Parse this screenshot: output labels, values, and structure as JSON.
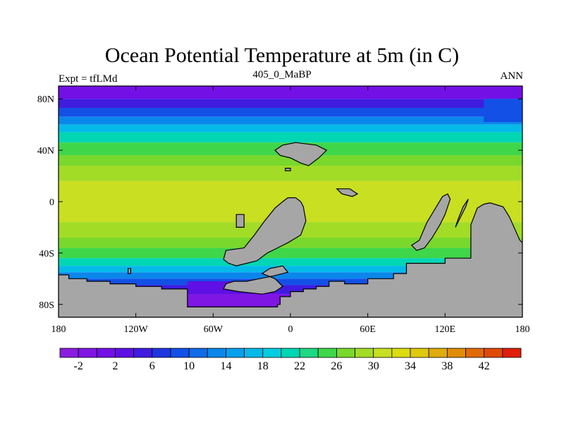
{
  "title": "Ocean Potential Temperature at 5m (in C)",
  "subtitle": "405_0_MaBP",
  "left_label": "Expt = tfLMd",
  "right_label": "ANN",
  "map": {
    "projection": "cylindrical-equidistant",
    "lon_range": [
      -180,
      180
    ],
    "lat_range": [
      -90,
      90
    ],
    "lon_ticks": [
      {
        "value": -180,
        "label": "180"
      },
      {
        "value": -120,
        "label": "120W"
      },
      {
        "value": -60,
        "label": "60W"
      },
      {
        "value": 0,
        "label": "0"
      },
      {
        "value": 60,
        "label": "60E"
      },
      {
        "value": 120,
        "label": "120E"
      },
      {
        "value": 180,
        "label": "180"
      }
    ],
    "lat_ticks": [
      {
        "value": 80,
        "label": "80N"
      },
      {
        "value": 40,
        "label": "40N"
      },
      {
        "value": 0,
        "label": "0"
      },
      {
        "value": -40,
        "label": "40S"
      },
      {
        "value": -80,
        "label": "80S"
      }
    ],
    "ocean_bands": [
      {
        "lat_from": 90,
        "lat_to": 80,
        "temp": 1
      },
      {
        "lat_from": 80,
        "lat_to": 73,
        "temp": 5
      },
      {
        "lat_from": 73,
        "lat_to": 66,
        "temp": 9
      },
      {
        "lat_from": 66,
        "lat_to": 60,
        "temp": 13
      },
      {
        "lat_from": 60,
        "lat_to": 54,
        "temp": 17
      },
      {
        "lat_from": 54,
        "lat_to": 46,
        "temp": 21
      },
      {
        "lat_from": 46,
        "lat_to": 36,
        "temp": 25
      },
      {
        "lat_from": 36,
        "lat_to": 28,
        "temp": 27
      },
      {
        "lat_from": 28,
        "lat_to": 16,
        "temp": 29
      },
      {
        "lat_from": 16,
        "lat_to": -16,
        "temp": 31
      },
      {
        "lat_from": -16,
        "lat_to": -28,
        "temp": 29
      },
      {
        "lat_from": -28,
        "lat_to": -36,
        "temp": 27
      },
      {
        "lat_from": -36,
        "lat_to": -44,
        "temp": 25
      },
      {
        "lat_from": -44,
        "lat_to": -50,
        "temp": 21
      },
      {
        "lat_from": -50,
        "lat_to": -55,
        "temp": 17
      },
      {
        "lat_from": -55,
        "lat_to": -60,
        "temp": 13
      },
      {
        "lat_from": -60,
        "lat_to": -65,
        "temp": 9
      },
      {
        "lat_from": -65,
        "lat_to": -72,
        "temp": 5
      },
      {
        "lat_from": -72,
        "lat_to": -90,
        "temp": 1
      }
    ],
    "regional_patches": [
      {
        "lon_from": -80,
        "lon_to": -10,
        "lat_from": -62,
        "lat_to": -72,
        "temp": 3
      },
      {
        "lon_from": -80,
        "lon_to": -8,
        "lat_from": -72,
        "lat_to": -82,
        "temp": -1
      },
      {
        "lon_from": 150,
        "lon_to": 180,
        "lat_from": 80,
        "lat_to": 62,
        "temp": 9
      }
    ],
    "land": [
      {
        "name": "southern-land-mass",
        "points": [
          [
            -180,
            -57
          ],
          [
            -172,
            -57
          ],
          [
            -172,
            -60
          ],
          [
            -158,
            -60
          ],
          [
            -158,
            -62
          ],
          [
            -140,
            -62
          ],
          [
            -140,
            -64
          ],
          [
            -120,
            -64
          ],
          [
            -120,
            -66
          ],
          [
            -100,
            -66
          ],
          [
            -100,
            -68
          ],
          [
            -80,
            -68
          ],
          [
            -80,
            -82
          ],
          [
            -10,
            -82
          ],
          [
            -10,
            -80
          ],
          [
            -8,
            -80
          ],
          [
            -8,
            -74
          ],
          [
            0,
            -74
          ],
          [
            0,
            -70
          ],
          [
            10,
            -70
          ],
          [
            10,
            -68
          ],
          [
            20,
            -68
          ],
          [
            20,
            -66
          ],
          [
            30,
            -66
          ],
          [
            30,
            -62
          ],
          [
            42,
            -62
          ],
          [
            42,
            -64
          ],
          [
            60,
            -64
          ],
          [
            60,
            -60
          ],
          [
            80,
            -60
          ],
          [
            80,
            -56
          ],
          [
            90,
            -56
          ],
          [
            90,
            -48
          ],
          [
            120,
            -48
          ],
          [
            120,
            -44
          ],
          [
            140,
            -44
          ],
          [
            140,
            -18
          ],
          [
            145,
            -5
          ],
          [
            150,
            -2
          ],
          [
            155,
            -1
          ],
          [
            165,
            -4
          ],
          [
            170,
            -12
          ],
          [
            178,
            -30
          ],
          [
            180,
            -32
          ],
          [
            180,
            -90
          ],
          [
            -180,
            -90
          ]
        ]
      },
      {
        "name": "central-land-mass",
        "points": [
          [
            -50,
            -38
          ],
          [
            -36,
            -36
          ],
          [
            -28,
            -26
          ],
          [
            -20,
            -15
          ],
          [
            -12,
            -5
          ],
          [
            -6,
            0
          ],
          [
            -2,
            3
          ],
          [
            4,
            3
          ],
          [
            8,
            0
          ],
          [
            10,
            -4
          ],
          [
            12,
            -15
          ],
          [
            8,
            -26
          ],
          [
            -2,
            -32
          ],
          [
            -10,
            -36
          ],
          [
            -18,
            -40
          ],
          [
            -26,
            -46
          ],
          [
            -34,
            -48
          ],
          [
            -42,
            -50
          ],
          [
            -48,
            -48
          ],
          [
            -52,
            -45
          ]
        ]
      },
      {
        "name": "south-land-fragment",
        "points": [
          [
            -22,
            -56
          ],
          [
            -16,
            -52
          ],
          [
            -6,
            -50
          ],
          [
            -2,
            -55
          ],
          [
            -14,
            -58
          ],
          [
            -24,
            -60
          ],
          [
            -34,
            -62
          ],
          [
            -44,
            -62
          ],
          [
            -50,
            -64
          ],
          [
            -52,
            -68
          ],
          [
            -40,
            -70
          ],
          [
            -22,
            -72
          ],
          [
            -12,
            -70
          ],
          [
            -6,
            -66
          ],
          [
            -12,
            -60
          ]
        ]
      },
      {
        "name": "southwest-islands",
        "points": [
          [
            -126,
            -52
          ],
          [
            -124,
            -52
          ],
          [
            -124,
            -56
          ],
          [
            -126,
            -56
          ]
        ]
      },
      {
        "name": "east-peninsula",
        "points": [
          [
            100,
            -30
          ],
          [
            106,
            -16
          ],
          [
            112,
            -6
          ],
          [
            118,
            4
          ],
          [
            122,
            6
          ],
          [
            124,
            2
          ],
          [
            120,
            -10
          ],
          [
            116,
            -18
          ],
          [
            110,
            -28
          ],
          [
            104,
            -36
          ],
          [
            98,
            -38
          ],
          [
            94,
            -34
          ]
        ]
      },
      {
        "name": "east-island",
        "points": [
          [
            128,
            -20
          ],
          [
            132,
            -12
          ],
          [
            136,
            -4
          ],
          [
            138,
            2
          ],
          [
            134,
            -4
          ],
          [
            130,
            -14
          ]
        ]
      },
      {
        "name": "northern-land-mass",
        "points": [
          [
            -12,
            40
          ],
          [
            -6,
            44
          ],
          [
            4,
            46
          ],
          [
            20,
            44
          ],
          [
            28,
            40
          ],
          [
            22,
            34
          ],
          [
            14,
            28
          ],
          [
            8,
            30
          ],
          [
            0,
            34
          ],
          [
            -8,
            36
          ]
        ]
      },
      {
        "name": "north-islet",
        "points": [
          [
            -4,
            26
          ],
          [
            0,
            26
          ],
          [
            0,
            24
          ],
          [
            -4,
            24
          ]
        ]
      },
      {
        "name": "east-islets",
        "points": [
          [
            36,
            10
          ],
          [
            46,
            10
          ],
          [
            52,
            6
          ],
          [
            48,
            4
          ],
          [
            40,
            6
          ]
        ]
      },
      {
        "name": "west-islet",
        "points": [
          [
            -42,
            -10
          ],
          [
            -36,
            -10
          ],
          [
            -36,
            -20
          ],
          [
            -42,
            -20
          ]
        ]
      }
    ],
    "coast_color": "#000000",
    "land_color": "#a6a6a6"
  },
  "colorbar": {
    "levels": [
      -4,
      -2,
      0,
      2,
      4,
      6,
      8,
      10,
      12,
      14,
      16,
      18,
      20,
      22,
      24,
      26,
      28,
      30,
      32,
      34,
      36,
      38,
      40,
      42,
      44
    ],
    "colors": [
      "#8a1ee0",
      "#7f16e3",
      "#7310e6",
      "#5f10e4",
      "#3f1ce0",
      "#1e36e0",
      "#1350e6",
      "#0f6be8",
      "#0b86ea",
      "#08a0ec",
      "#05b9e8",
      "#02cde0",
      "#00d6b4",
      "#1ed884",
      "#3fd64a",
      "#78d82c",
      "#a2dc26",
      "#c8df22",
      "#dcdc10",
      "#e0c80c",
      "#e0ac0c",
      "#e08c08",
      "#e06a08",
      "#e04a08",
      "#e01e0c"
    ],
    "tick_labels": [
      {
        "value": -2,
        "label": "-2"
      },
      {
        "value": 2,
        "label": "2"
      },
      {
        "value": 6,
        "label": "6"
      },
      {
        "value": 10,
        "label": "10"
      },
      {
        "value": 14,
        "label": "14"
      },
      {
        "value": 18,
        "label": "18"
      },
      {
        "value": 22,
        "label": "22"
      },
      {
        "value": 26,
        "label": "26"
      },
      {
        "value": 30,
        "label": "30"
      },
      {
        "value": 34,
        "label": "34"
      },
      {
        "value": 38,
        "label": "38"
      },
      {
        "value": 42,
        "label": "42"
      }
    ]
  }
}
